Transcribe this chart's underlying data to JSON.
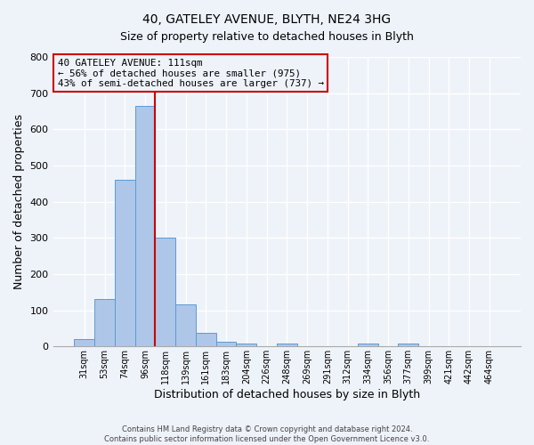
{
  "title": "40, GATELEY AVENUE, BLYTH, NE24 3HG",
  "subtitle": "Size of property relative to detached houses in Blyth",
  "xlabel": "Distribution of detached houses by size in Blyth",
  "ylabel": "Number of detached properties",
  "bar_labels": [
    "31sqm",
    "53sqm",
    "74sqm",
    "96sqm",
    "118sqm",
    "139sqm",
    "161sqm",
    "183sqm",
    "204sqm",
    "226sqm",
    "248sqm",
    "269sqm",
    "291sqm",
    "312sqm",
    "334sqm",
    "356sqm",
    "377sqm",
    "399sqm",
    "421sqm",
    "442sqm",
    "464sqm"
  ],
  "bar_values": [
    20,
    130,
    460,
    665,
    300,
    117,
    37,
    13,
    8,
    0,
    8,
    0,
    0,
    0,
    8,
    0,
    8,
    0,
    0,
    0,
    0
  ],
  "bar_color": "#aec6e8",
  "bar_edgecolor": "#5b9bd5",
  "vline_color": "#cc0000",
  "ylim": [
    0,
    800
  ],
  "yticks": [
    0,
    100,
    200,
    300,
    400,
    500,
    600,
    700,
    800
  ],
  "annotation_title": "40 GATELEY AVENUE: 111sqm",
  "annotation_line1": "← 56% of detached houses are smaller (975)",
  "annotation_line2": "43% of semi-detached houses are larger (737) →",
  "annotation_box_color": "#cc0000",
  "footnote1": "Contains HM Land Registry data © Crown copyright and database right 2024.",
  "footnote2": "Contains public sector information licensed under the Open Government Licence v3.0.",
  "background_color": "#eef2f9",
  "grid_color": "#ffffff"
}
